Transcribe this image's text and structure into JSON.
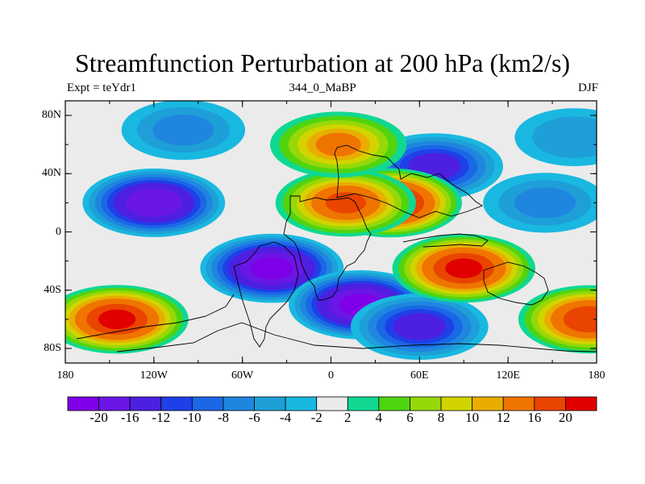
{
  "title": "Streamfunction Perturbation at 200 hPa (km2/s)",
  "left_subtitle": "Expt = teYdr1",
  "center_subtitle": "344_0_MaBP",
  "right_subtitle": "DJF",
  "y_axis": {
    "range": [
      -90,
      90
    ],
    "ticks": [
      {
        "value": 80,
        "label": "80N"
      },
      {
        "value": 40,
        "label": "40N"
      },
      {
        "value": 0,
        "label": "0"
      },
      {
        "value": -40,
        "label": "40S"
      },
      {
        "value": -80,
        "label": "80S"
      }
    ]
  },
  "x_axis": {
    "range": [
      -180,
      180
    ],
    "ticks": [
      {
        "value": -180,
        "label": "180"
      },
      {
        "value": -120,
        "label": "120W"
      },
      {
        "value": -60,
        "label": "60W"
      },
      {
        "value": 0,
        "label": "0"
      },
      {
        "value": 60,
        "label": "60E"
      },
      {
        "value": 120,
        "label": "120E"
      },
      {
        "value": 180,
        "label": "180"
      }
    ]
  },
  "colorbar": {
    "colors": [
      "#7f00e8",
      "#6a16e6",
      "#4d1fe0",
      "#1f3fe8",
      "#1a68e6",
      "#1f86e0",
      "#1e9fd8",
      "#19b8e0",
      "#ebebeb",
      "#10d890",
      "#50d410",
      "#96d808",
      "#d2d400",
      "#e8ad00",
      "#ef7400",
      "#e94400",
      "#e00000"
    ],
    "labels": [
      "-20",
      "-16",
      "-12",
      "-10",
      "-8",
      "-6",
      "-4",
      "-2",
      "2",
      "4",
      "6",
      "8",
      "10",
      "12",
      "16",
      "20"
    ]
  },
  "chart_data": {
    "type": "heatmap",
    "title": "Streamfunction Perturbation at 200 hPa (km2/s)",
    "units": "km2/s",
    "x_range": [
      -180,
      180
    ],
    "y_range": [
      -90,
      90
    ],
    "contour_levels": [
      -20,
      -16,
      -12,
      -10,
      -8,
      -6,
      -4,
      -2,
      2,
      4,
      6,
      8,
      10,
      12,
      16,
      20
    ],
    "field_features": [
      {
        "lon": -120,
        "lat": 20,
        "value": -19
      },
      {
        "lon": -100,
        "lat": 70,
        "value": -6
      },
      {
        "lon": -40,
        "lat": -25,
        "value": -21
      },
      {
        "lon": 20,
        "lat": -50,
        "value": -21
      },
      {
        "lon": 60,
        "lat": -65,
        "value": -13
      },
      {
        "lon": 70,
        "lat": 45,
        "value": -13
      },
      {
        "lon": 40,
        "lat": 20,
        "value": 22
      },
      {
        "lon": 10,
        "lat": 20,
        "value": 16
      },
      {
        "lon": 5,
        "lat": 60,
        "value": 12
      },
      {
        "lon": 90,
        "lat": -25,
        "value": 20
      },
      {
        "lon": -145,
        "lat": -60,
        "value": 20
      },
      {
        "lon": 175,
        "lat": -60,
        "value": 18
      },
      {
        "lon": 165,
        "lat": 65,
        "value": -5
      },
      {
        "lon": 145,
        "lat": 20,
        "value": -6
      }
    ]
  }
}
